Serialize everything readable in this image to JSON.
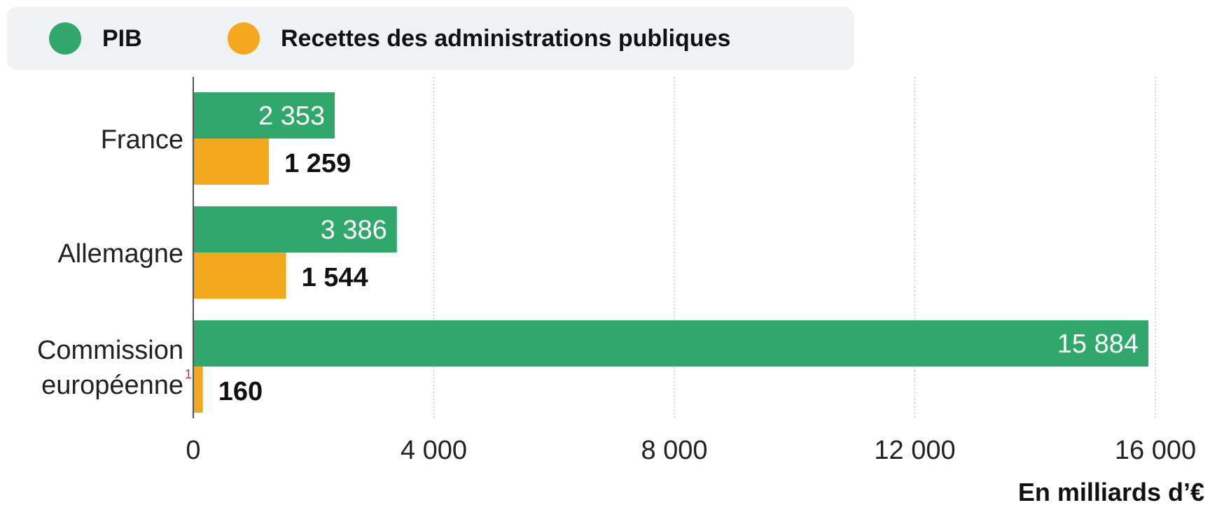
{
  "legend": [
    {
      "label": "PIB",
      "color": "#31a86b"
    },
    {
      "label": "Recettes des administrations publiques",
      "color": "#f4a81d"
    }
  ],
  "chart_data": {
    "type": "bar",
    "orientation": "horizontal",
    "categories": [
      {
        "lines": [
          "France"
        ],
        "footnote": ""
      },
      {
        "lines": [
          "Allemagne"
        ],
        "footnote": ""
      },
      {
        "lines": [
          "Commission",
          "européenne"
        ],
        "footnote": "1"
      }
    ],
    "series": [
      {
        "name": "PIB",
        "color": "#31a86b",
        "values": [
          2353,
          3386,
          15884
        ],
        "labels": [
          "2 353",
          "3 386",
          "15 884"
        ]
      },
      {
        "name": "Recettes des administrations publiques",
        "color": "#f4a81d",
        "values": [
          1259,
          1544,
          160
        ],
        "labels": [
          "1 259",
          "1 544",
          "160"
        ]
      }
    ],
    "xlim": [
      0,
      16000
    ],
    "xticks": [
      0,
      4000,
      8000,
      12000,
      16000
    ],
    "xtick_labels": [
      "0",
      "4 000",
      "8 000",
      "12 000",
      "16 000"
    ],
    "xlabel": "En milliards d’€",
    "grid": "vertical dotted",
    "legend_position": "top"
  }
}
